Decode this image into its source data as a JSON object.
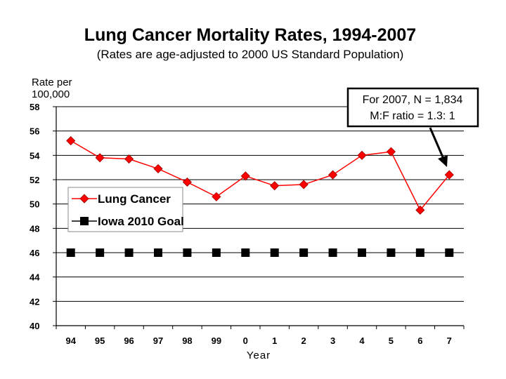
{
  "chart_data": {
    "type": "line",
    "title": "Lung Cancer Mortality Rates, 1994-2007",
    "subtitle": "(Rates are age-adjusted to 2000 US Standard Population)",
    "ylabel": [
      "Rate per",
      "100,000"
    ],
    "xlabel": "Year",
    "categories": [
      "94",
      "95",
      "96",
      "97",
      "98",
      "99",
      "0",
      "1",
      "2",
      "3",
      "4",
      "5",
      "6",
      "7"
    ],
    "ylim": [
      40,
      58
    ],
    "yticks": [
      "40",
      "42",
      "44",
      "46",
      "48",
      "50",
      "52",
      "54",
      "56",
      "58"
    ],
    "grid": true,
    "legend_position": "left, middle",
    "series": [
      {
        "name": "Lung Cancer",
        "color": "#ff0000",
        "marker": "diamond",
        "values": [
          55.2,
          53.8,
          53.7,
          52.9,
          51.8,
          50.6,
          52.3,
          51.5,
          51.6,
          52.4,
          54.0,
          54.3,
          49.5,
          52.4
        ]
      },
      {
        "name": "Iowa 2010 Goal",
        "color": "#000000",
        "marker": "square",
        "line": "none",
        "values": [
          46,
          46,
          46,
          46,
          46,
          46,
          46,
          46,
          46,
          46,
          46,
          46,
          46,
          46
        ]
      }
    ],
    "annotation": {
      "lines": [
        "For 2007, N = 1,834",
        "M:F ratio = 1.3: 1"
      ],
      "points_to_category": "7"
    }
  }
}
